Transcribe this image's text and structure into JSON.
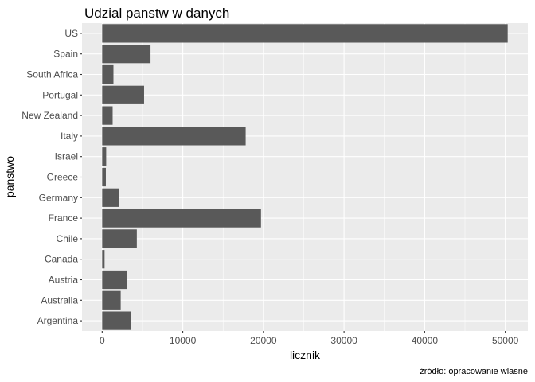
{
  "chart_data": {
    "type": "bar",
    "orientation": "horizontal",
    "title": "Udzial panstw w danych",
    "xlabel": "licznik",
    "ylabel": "panstwo",
    "caption": "źródło: opracowanie wlasne",
    "categories": [
      "US",
      "Spain",
      "South Africa",
      "Portugal",
      "New Zealand",
      "Italy",
      "Israel",
      "Greece",
      "Germany",
      "France",
      "Chile",
      "Canada",
      "Austria",
      "Australia",
      "Argentina"
    ],
    "values": [
      50300,
      6000,
      1400,
      5200,
      1300,
      17800,
      500,
      460,
      2100,
      19700,
      4300,
      300,
      3100,
      2300,
      3600
    ],
    "xlim": [
      -2500,
      52800
    ],
    "xticks": [
      0,
      10000,
      20000,
      30000,
      40000,
      50000
    ],
    "grid": true,
    "colors": {
      "bar": "#595959",
      "panel": "#ebebeb",
      "grid": "#ffffff"
    }
  }
}
